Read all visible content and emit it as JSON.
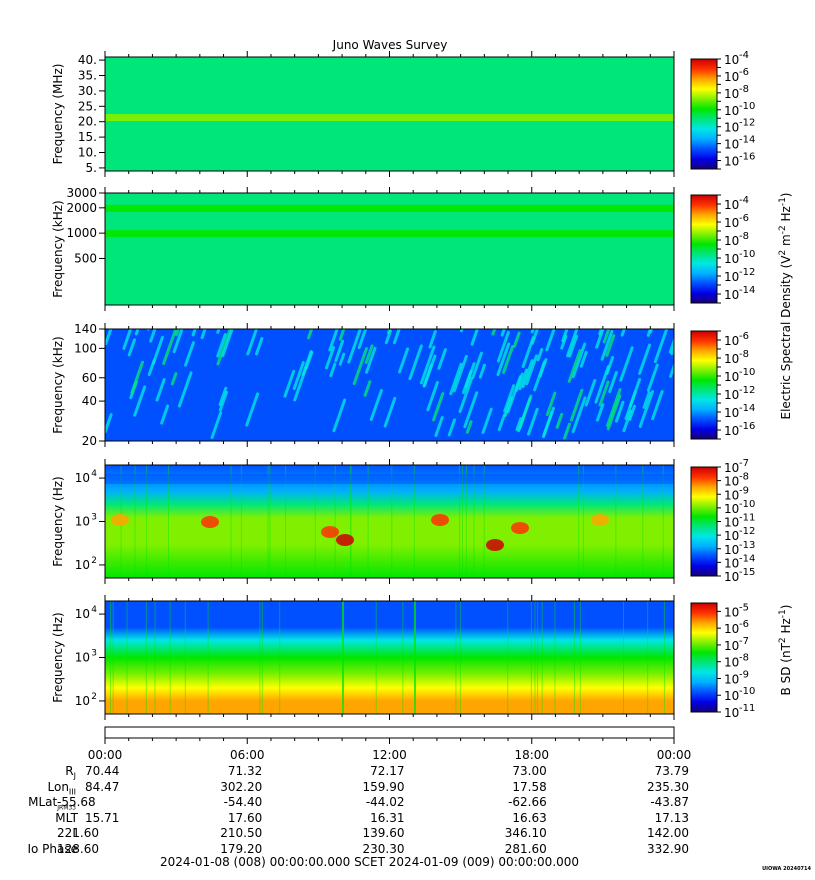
{
  "title": "Juno Waves Survey",
  "colors": {
    "cmap": [
      "#1a0078",
      "#0000e6",
      "#0050ff",
      "#00b0ff",
      "#00e6e6",
      "#00e67a",
      "#00e600",
      "#80f000",
      "#ffff00",
      "#ffa500",
      "#ff3000",
      "#cc0000"
    ]
  },
  "chart_data": [
    {
      "type": "heatmap",
      "name": "panel-hf-mhz",
      "ylabel": "Frequency (MHz)",
      "yscale": "linear",
      "ylim": [
        4,
        41
      ],
      "yticks": [
        "5.",
        "10.",
        "15.",
        "20.",
        "25.",
        "30.",
        "35.",
        "40."
      ],
      "ytick_values": [
        5,
        10,
        15,
        20,
        25,
        30,
        35,
        40
      ],
      "cbar_ticks": [
        "-4",
        "-6",
        "-8",
        "-10",
        "-12",
        "-14",
        "-16"
      ],
      "cbar_range": [
        -17,
        -4
      ],
      "background_level": 0.48,
      "features": [
        {
          "kind": "band",
          "y": 21.5,
          "level": 0.6
        }
      ]
    },
    {
      "type": "heatmap",
      "name": "panel-hf-khz",
      "ylabel": "Frequency (kHz)",
      "yscale": "log",
      "ylim": [
        140,
        3000
      ],
      "yticks": [
        "3000",
        "2000",
        "1000",
        "500"
      ],
      "ytick_values": [
        3000,
        2000,
        1000,
        500
      ],
      "cbar_ticks": [
        "-4",
        "-6",
        "-8",
        "-10",
        "-12",
        "-14"
      ],
      "cbar_range": [
        -15,
        -3
      ],
      "background_level": 0.48,
      "features": [
        {
          "kind": "band",
          "y": 2000,
          "level": 0.56
        },
        {
          "kind": "band",
          "y": 1000,
          "level": 0.53
        }
      ]
    },
    {
      "type": "heatmap",
      "name": "panel-lf-khz",
      "ylabel": "Frequency (kHz)",
      "yscale": "log",
      "ylim": [
        20,
        140
      ],
      "yticks": [
        "140",
        "100",
        "60",
        "40",
        "20"
      ],
      "ytick_values": [
        140,
        100,
        60,
        40,
        20
      ],
      "cbar_ticks": [
        "-6",
        "-8",
        "-10",
        "-12",
        "-14",
        "-16"
      ],
      "cbar_range": [
        -17,
        -5
      ],
      "background_level": 0.22,
      "features": [
        {
          "kind": "streaks",
          "level": 0.36
        }
      ]
    },
    {
      "type": "heatmap",
      "name": "panel-efield-hz",
      "ylabel": "Frequency (Hz)",
      "yscale": "log",
      "ylim": [
        50,
        20000
      ],
      "yticks": [
        "10",
        "10",
        "10"
      ],
      "ytick_exps": [
        "4",
        "3",
        "2"
      ],
      "ytick_values": [
        10000,
        1000,
        100
      ],
      "cbar_ticks": [
        "-7",
        "-8",
        "-9",
        "-10",
        "-11",
        "-12",
        "-13",
        "-14",
        "-15"
      ],
      "cbar_range": [
        -15,
        -7
      ],
      "background_level": 0.2,
      "features": [
        {
          "kind": "gradient",
          "stops": [
            [
              20000,
              0.2
            ],
            [
              5000,
              0.3
            ],
            [
              2500,
              0.45
            ],
            [
              1200,
              0.68
            ],
            [
              700,
              0.6
            ],
            [
              300,
              0.62
            ],
            [
              50,
              0.58
            ]
          ]
        }
      ]
    },
    {
      "type": "heatmap",
      "name": "panel-bfield-hz",
      "ylabel": "Frequency (Hz)",
      "yscale": "log",
      "ylim": [
        50,
        20000
      ],
      "yticks": [
        "10",
        "10",
        "10"
      ],
      "ytick_exps": [
        "4",
        "3",
        "2"
      ],
      "ytick_values": [
        10000,
        1000,
        100
      ],
      "cbar_ticks": [
        "-5",
        "-6",
        "-7",
        "-8",
        "-9",
        "-10",
        "-11"
      ],
      "cbar_range": [
        -11,
        -4.5
      ],
      "background_level": 0.2,
      "features": [
        {
          "kind": "gradient",
          "stops": [
            [
              20000,
              0.18
            ],
            [
              10000,
              0.17
            ],
            [
              5000,
              0.22
            ],
            [
              2500,
              0.35
            ],
            [
              1000,
              0.52
            ],
            [
              400,
              0.62
            ],
            [
              200,
              0.72
            ],
            [
              100,
              0.8
            ],
            [
              60,
              0.86
            ]
          ]
        }
      ]
    }
  ],
  "right_labels": {
    "electric": {
      "text": "Electric Spectral Density (V",
      "sup1": "2",
      "mid": " m",
      "sup2": "-2",
      "mid2": " Hz",
      "sup3": "-1",
      "end": ")"
    },
    "magnetic": {
      "text": "B SD (nT",
      "sup1": "2",
      "mid": " Hz",
      "sup2": "-1",
      "end": ")"
    }
  },
  "time_axis": {
    "ticks": [
      "00:00",
      "06:00",
      "12:00",
      "18:00",
      "00:00"
    ],
    "rows": [
      {
        "label": "R",
        "sub": "J",
        "values": [
          "70.44",
          "71.32",
          "72.17",
          "73.00",
          "73.79"
        ]
      },
      {
        "label": "Lon",
        "sub": "III",
        "values": [
          "84.47",
          "302.20",
          "159.90",
          "17.58",
          "235.30"
        ]
      },
      {
        "label": "MLat",
        "sub": "JRM33",
        "values": [
          "-55.68",
          "-54.40",
          "-44.02",
          "-62.66",
          "-43.87"
        ]
      },
      {
        "label": "MLT",
        "sub": "",
        "values": [
          "15.71",
          "17.60",
          "16.31",
          "16.63",
          "17.13"
        ]
      },
      {
        "label": "L",
        "sub": "",
        "values": [
          "221.60",
          "210.50",
          "139.60",
          "346.10",
          "142.00"
        ]
      },
      {
        "label": "Io Phase",
        "sub": "",
        "values": [
          "128.60",
          "179.20",
          "230.30",
          "281.60",
          "332.90"
        ]
      }
    ]
  },
  "footer": "2024-01-08 (008) 00:00:00.000     SCET     2024-01-09 (009) 00:00:00.000",
  "stamp": "UIOWA 20240714"
}
